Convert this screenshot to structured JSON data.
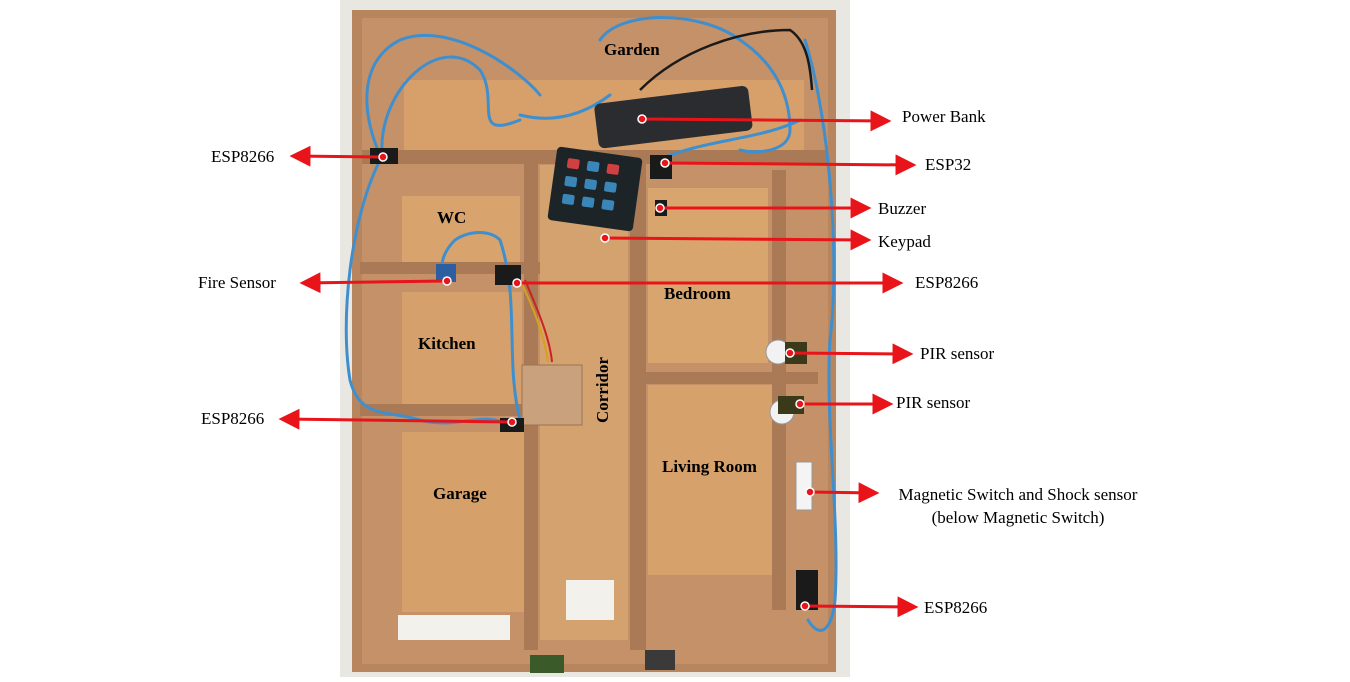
{
  "rooms": {
    "garden": "Garden",
    "wc": "WC",
    "kitchen": "Kitchen",
    "garage": "Garage",
    "corridor": "Corridor",
    "bedroom": "Bedroom",
    "living_room": "Living Room"
  },
  "callouts": {
    "power_bank": "Power Bank",
    "esp32": "ESP32",
    "buzzer": "Buzzer",
    "keypad": "Keypad",
    "esp8266_wc": "ESP8266",
    "pir_bedroom": "PIR sensor",
    "pir_living": "PIR sensor",
    "magnetic_line1": "Magnetic Switch and Shock sensor",
    "magnetic_line2": "(below Magnetic Switch)",
    "esp8266_living": "ESP8266",
    "esp8266_garden": "ESP8266",
    "fire_sensor": "Fire Sensor",
    "esp8266_garage": "ESP8266"
  },
  "colors": {
    "background": "#ffffff",
    "photo_backdrop": "#e9e7e2",
    "cardboard": "#c49168",
    "cardboard_dark": "#8e6748",
    "floor": "#d7a06a",
    "wire": "#3f8fcf",
    "arrow": "#e8141a"
  },
  "icons": [
    "keypad-icon",
    "power-bank-icon",
    "esp-board-icon",
    "pir-sensor-icon",
    "buzzer-icon",
    "fire-sensor-icon",
    "magnetic-switch-icon"
  ]
}
